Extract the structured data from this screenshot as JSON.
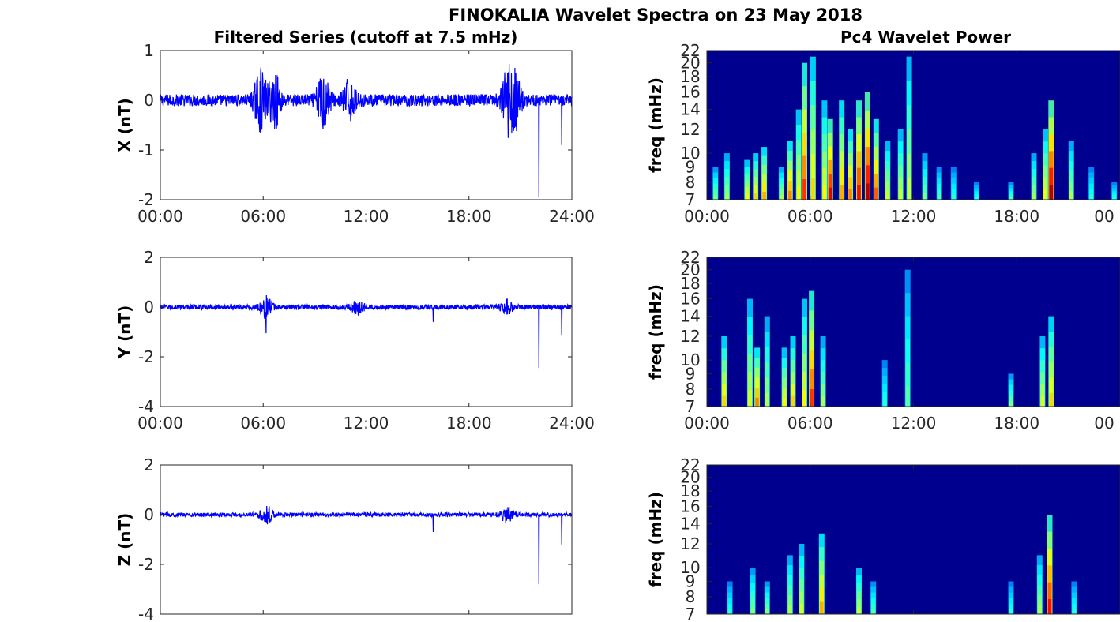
{
  "figure": {
    "title": "FINOKALIA Wavelet Spectra on 23 May 2018",
    "left_title": "Filtered Series (cutoff at 7.5 mHz)",
    "right_title": "Pc4 Wavelet Power"
  },
  "chart_data": [
    {
      "type": "line",
      "panel": "X",
      "ylabel": "X (nT)",
      "ylim": [
        -2,
        1
      ],
      "yticks": [
        "1",
        "0",
        "-1",
        "-2"
      ],
      "xlim": [
        "00:00",
        "24:00"
      ],
      "xticks": [
        "00:00",
        "06:00",
        "12:00",
        "18:00",
        "24:00"
      ],
      "color": "#0000ff",
      "noise_amplitude": 0.12,
      "bursts": [
        {
          "time": "05:50",
          "amp": 0.55
        },
        {
          "time": "06:40",
          "amp": 0.5
        },
        {
          "time": "09:30",
          "amp": 0.55
        },
        {
          "time": "11:00",
          "amp": 0.35
        },
        {
          "time": "20:15",
          "amp": 0.5
        },
        {
          "time": "20:40",
          "amp": 0.55
        }
      ],
      "spikes": [
        {
          "time": "22:05",
          "value": -1.95
        },
        {
          "time": "23:25",
          "value": -0.9
        }
      ]
    },
    {
      "type": "line",
      "panel": "Y",
      "ylabel": "Y (nT)",
      "ylim": [
        -4,
        2
      ],
      "yticks": [
        "2",
        "0",
        "-2",
        "-4"
      ],
      "xlim": [
        "00:00",
        "24:00"
      ],
      "xticks": [
        "00:00",
        "06:00",
        "12:00",
        "18:00",
        "24:00"
      ],
      "color": "#0000ff",
      "noise_amplitude": 0.1,
      "bursts": [
        {
          "time": "06:10",
          "amp": 0.4
        },
        {
          "time": "11:30",
          "amp": 0.25
        },
        {
          "time": "20:15",
          "amp": 0.25
        }
      ],
      "spikes": [
        {
          "time": "06:10",
          "value": -1.05
        },
        {
          "time": "15:55",
          "value": -0.6
        },
        {
          "time": "22:05",
          "value": -2.45
        },
        {
          "time": "23:25",
          "value": -1.15
        }
      ]
    },
    {
      "type": "line",
      "panel": "Z",
      "ylabel": "Z (nT)",
      "ylim": [
        -4,
        2
      ],
      "yticks": [
        "2",
        "0",
        "-2",
        "-4"
      ],
      "xlim": [
        "00:00",
        "24:00"
      ],
      "xticks": [],
      "color": "#0000ff",
      "noise_amplitude": 0.08,
      "bursts": [
        {
          "time": "06:10",
          "amp": 0.35
        },
        {
          "time": "20:15",
          "amp": 0.35
        }
      ],
      "spikes": [
        {
          "time": "15:55",
          "value": -0.7
        },
        {
          "time": "22:05",
          "value": -2.8
        },
        {
          "time": "23:25",
          "value": -1.2
        }
      ]
    },
    {
      "type": "heatmap",
      "panel": "X",
      "ylabel": "freq (mHz)",
      "yticks": [
        "22",
        "20",
        "18",
        "16",
        "14",
        "12",
        "10",
        "9",
        "8",
        "7"
      ],
      "yscale": "log",
      "ylim": [
        7,
        22
      ],
      "xlim": [
        "00:00",
        "24:00"
      ],
      "xticks": [
        "00:00",
        "06:00",
        "12:00",
        "18:00",
        "00"
      ],
      "colormap": "jet",
      "background": "#00008f",
      "events": [
        {
          "time": "00:30",
          "fmax": 9,
          "power": 0.4
        },
        {
          "time": "01:10",
          "fmax": 10,
          "power": 0.45
        },
        {
          "time": "02:20",
          "fmax": 9.5,
          "power": 0.55
        },
        {
          "time": "02:50",
          "fmax": 10,
          "power": 0.6
        },
        {
          "time": "03:20",
          "fmax": 10.5,
          "power": 0.65
        },
        {
          "time": "04:20",
          "fmax": 9,
          "power": 0.45
        },
        {
          "time": "04:50",
          "fmax": 11,
          "power": 0.7
        },
        {
          "time": "05:20",
          "fmax": 14,
          "power": 0.55
        },
        {
          "time": "05:40",
          "fmax": 20,
          "power": 0.8
        },
        {
          "time": "06:10",
          "fmax": 21,
          "power": 0.6
        },
        {
          "time": "06:50",
          "fmax": 15,
          "power": 0.55
        },
        {
          "time": "07:10",
          "fmax": 13,
          "power": 0.9
        },
        {
          "time": "07:50",
          "fmax": 15,
          "power": 0.65
        },
        {
          "time": "08:20",
          "fmax": 12,
          "power": 0.7
        },
        {
          "time": "08:50",
          "fmax": 15,
          "power": 0.85
        },
        {
          "time": "09:20",
          "fmax": 16,
          "power": 0.95
        },
        {
          "time": "09:50",
          "fmax": 13,
          "power": 0.75
        },
        {
          "time": "10:30",
          "fmax": 11,
          "power": 0.5
        },
        {
          "time": "11:15",
          "fmax": 12,
          "power": 0.5
        },
        {
          "time": "11:45",
          "fmax": 21,
          "power": 0.5
        },
        {
          "time": "12:40",
          "fmax": 10,
          "power": 0.4
        },
        {
          "time": "13:30",
          "fmax": 9,
          "power": 0.35
        },
        {
          "time": "14:20",
          "fmax": 9,
          "power": 0.3
        },
        {
          "time": "15:40",
          "fmax": 8,
          "power": 0.3
        },
        {
          "time": "17:40",
          "fmax": 8,
          "power": 0.35
        },
        {
          "time": "19:00",
          "fmax": 10,
          "power": 0.45
        },
        {
          "time": "19:40",
          "fmax": 12,
          "power": 0.55
        },
        {
          "time": "20:00",
          "fmax": 15,
          "power": 0.95
        },
        {
          "time": "21:10",
          "fmax": 11,
          "power": 0.45
        },
        {
          "time": "22:20",
          "fmax": 9,
          "power": 0.3
        },
        {
          "time": "23:40",
          "fmax": 8,
          "power": 0.3
        }
      ]
    },
    {
      "type": "heatmap",
      "panel": "Y",
      "ylabel": "freq (mHz)",
      "yticks": [
        "22",
        "20",
        "18",
        "16",
        "14",
        "12",
        "10",
        "9",
        "8",
        "7"
      ],
      "yscale": "log",
      "ylim": [
        7,
        22
      ],
      "xlim": [
        "00:00",
        "24:00"
      ],
      "xticks": [
        "00:00",
        "06:00",
        "12:00",
        "18:00",
        "00"
      ],
      "colormap": "jet",
      "background": "#00008f",
      "events": [
        {
          "time": "01:00",
          "fmax": 12,
          "power": 0.6
        },
        {
          "time": "02:30",
          "fmax": 16,
          "power": 0.5
        },
        {
          "time": "02:55",
          "fmax": 11,
          "power": 0.7
        },
        {
          "time": "03:30",
          "fmax": 14,
          "power": 0.45
        },
        {
          "time": "04:30",
          "fmax": 11,
          "power": 0.55
        },
        {
          "time": "05:00",
          "fmax": 12,
          "power": 0.6
        },
        {
          "time": "05:40",
          "fmax": 16,
          "power": 0.55
        },
        {
          "time": "06:05",
          "fmax": 17,
          "power": 0.8
        },
        {
          "time": "06:45",
          "fmax": 12,
          "power": 0.45
        },
        {
          "time": "10:20",
          "fmax": 10,
          "power": 0.3
        },
        {
          "time": "11:40",
          "fmax": 20,
          "power": 0.35
        },
        {
          "time": "17:40",
          "fmax": 9,
          "power": 0.4
        },
        {
          "time": "19:30",
          "fmax": 12,
          "power": 0.5
        },
        {
          "time": "20:00",
          "fmax": 14,
          "power": 0.6
        }
      ]
    },
    {
      "type": "heatmap",
      "panel": "Z",
      "ylabel": "freq (mHz)",
      "yticks": [
        "22",
        "20",
        "18",
        "16",
        "14",
        "12",
        "10",
        "9",
        "8",
        "7"
      ],
      "yscale": "log",
      "ylim": [
        7,
        22
      ],
      "xlim": [
        "00:00",
        "24:00"
      ],
      "xticks": [],
      "colormap": "jet",
      "background": "#00008f",
      "events": [
        {
          "time": "01:20",
          "fmax": 9,
          "power": 0.3
        },
        {
          "time": "02:40",
          "fmax": 10,
          "power": 0.4
        },
        {
          "time": "03:30",
          "fmax": 9,
          "power": 0.4
        },
        {
          "time": "04:50",
          "fmax": 11,
          "power": 0.45
        },
        {
          "time": "05:30",
          "fmax": 12,
          "power": 0.5
        },
        {
          "time": "06:40",
          "fmax": 13,
          "power": 0.65
        },
        {
          "time": "08:50",
          "fmax": 10,
          "power": 0.5
        },
        {
          "time": "09:40",
          "fmax": 9,
          "power": 0.35
        },
        {
          "time": "17:40",
          "fmax": 9,
          "power": 0.3
        },
        {
          "time": "19:20",
          "fmax": 11,
          "power": 0.45
        },
        {
          "time": "19:55",
          "fmax": 15,
          "power": 0.85
        },
        {
          "time": "21:20",
          "fmax": 9,
          "power": 0.3
        }
      ]
    }
  ]
}
